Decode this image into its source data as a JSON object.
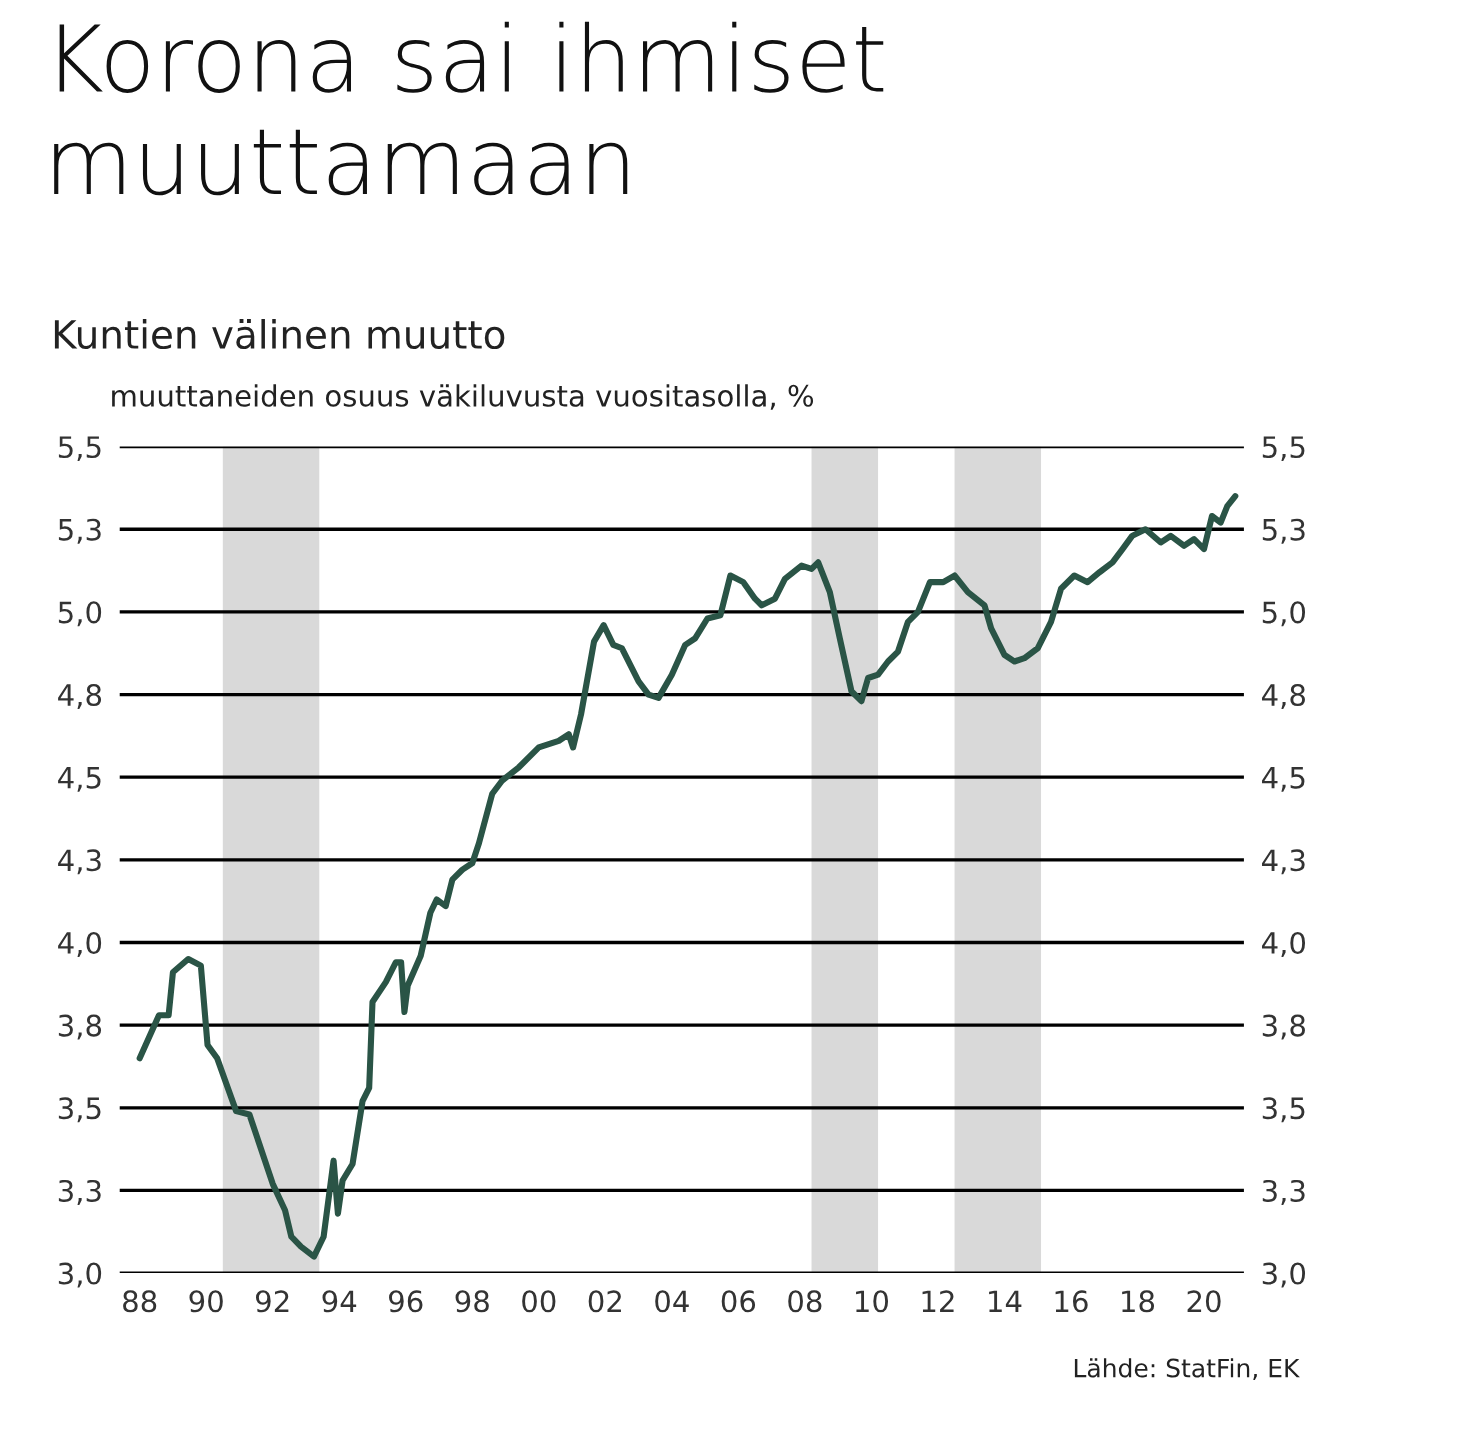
{
  "chart_data": {
    "type": "line",
    "title": "Korona sai ihmiset muuttamaan",
    "subtitle": "Kuntien välinen muutto",
    "ylabel": "muuttaneiden osuus väkiluvusta vuositasolla, %",
    "annotations": [
      "Lähde: StatFin, EK"
    ],
    "x": [
      1988.0,
      1988.58,
      1988.87,
      1989.0,
      1989.46,
      1989.84,
      1990.04,
      1990.33,
      1990.9,
      1991.3,
      1992.0,
      1992.37,
      1992.56,
      1992.85,
      1993.24,
      1993.53,
      1993.83,
      1993.96,
      1994.1,
      1994.4,
      1994.7,
      1994.9,
      1995.0,
      1995.4,
      1995.7,
      1995.86,
      1995.96,
      1996.06,
      1996.45,
      1996.74,
      1996.93,
      1997.2,
      1997.4,
      1997.7,
      1998.0,
      1998.2,
      1998.6,
      1998.9,
      1999.4,
      2000.0,
      2000.6,
      2000.9,
      2001.03,
      2001.27,
      2001.66,
      2001.95,
      2002.24,
      2002.5,
      2003.0,
      2003.3,
      2003.6,
      2004.0,
      2004.4,
      2004.7,
      2005.07,
      2005.46,
      2005.76,
      2006.15,
      2006.5,
      2006.7,
      2007.1,
      2007.4,
      2007.9,
      2008.2,
      2008.4,
      2008.75,
      2009.05,
      2009.4,
      2009.7,
      2009.9,
      2010.2,
      2010.5,
      2010.8,
      2011.1,
      2011.4,
      2011.76,
      2012.16,
      2012.5,
      2012.9,
      2013.4,
      2013.6,
      2014.0,
      2014.3,
      2014.6,
      2015.0,
      2015.4,
      2015.7,
      2016.1,
      2016.5,
      2016.86,
      2017.25,
      2017.55,
      2017.84,
      2018.24,
      2018.7,
      2019.0,
      2019.4,
      2019.7,
      2020.0,
      2020.24,
      2020.5,
      2020.7,
      2020.94
    ],
    "series": [
      {
        "color": "#2a5446",
        "values": [
          3.65,
          3.78,
          3.78,
          3.91,
          3.95,
          3.93,
          3.69,
          3.65,
          3.49,
          3.48,
          3.27,
          3.19,
          3.11,
          3.08,
          3.05,
          3.11,
          3.34,
          3.18,
          3.28,
          3.33,
          3.52,
          3.56,
          3.82,
          3.88,
          3.94,
          3.94,
          3.79,
          3.87,
          3.96,
          4.09,
          4.13,
          4.11,
          4.19,
          4.22,
          4.24,
          4.3,
          4.45,
          4.49,
          4.53,
          4.59,
          4.61,
          4.63,
          4.59,
          4.69,
          4.91,
          4.96,
          4.9,
          4.89,
          4.79,
          4.75,
          4.74,
          4.81,
          4.9,
          4.92,
          4.98,
          4.99,
          5.11,
          5.09,
          5.04,
          5.02,
          5.04,
          5.1,
          5.14,
          5.13,
          5.15,
          5.06,
          4.92,
          4.76,
          4.73,
          4.8,
          4.81,
          4.85,
          4.88,
          4.97,
          5.0,
          5.09,
          5.09,
          5.11,
          5.06,
          5.02,
          4.95,
          4.87,
          4.85,
          4.86,
          4.89,
          4.97,
          5.07,
          5.11,
          5.09,
          5.12,
          5.15,
          5.19,
          5.23,
          5.25,
          5.21,
          5.23,
          5.2,
          5.22,
          5.19,
          5.29,
          5.27,
          5.32,
          5.35
        ]
      }
    ],
    "bands": [
      {
        "axis": "x",
        "from": 1990.5,
        "to": 1993.4,
        "color": "#d9d9d9"
      },
      {
        "axis": "x",
        "from": 2008.2,
        "to": 2010.2,
        "color": "#d9d9d9"
      },
      {
        "axis": "x",
        "from": 2012.5,
        "to": 2015.1,
        "color": "#d9d9d9"
      }
    ],
    "xlim": [
      1987.4,
      2021.2
    ],
    "xticks": [
      {
        "value": 1988,
        "label": "88"
      },
      {
        "value": 1990,
        "label": "90"
      },
      {
        "value": 1992,
        "label": "92"
      },
      {
        "value": 1994,
        "label": "94"
      },
      {
        "value": 1996,
        "label": "96"
      },
      {
        "value": 1998,
        "label": "98"
      },
      {
        "value": 2000,
        "label": "00"
      },
      {
        "value": 2002,
        "label": "02"
      },
      {
        "value": 2004,
        "label": "04"
      },
      {
        "value": 2006,
        "label": "06"
      },
      {
        "value": 2008,
        "label": "08"
      },
      {
        "value": 2010,
        "label": "10"
      },
      {
        "value": 2012,
        "label": "12"
      },
      {
        "value": 2014,
        "label": "14"
      },
      {
        "value": 2016,
        "label": "16"
      },
      {
        "value": 2018,
        "label": "18"
      },
      {
        "value": 2020,
        "label": "20"
      }
    ],
    "ylim": [
      3.0,
      5.5
    ],
    "yticks": [
      {
        "value": 3.0,
        "label": "3,0"
      },
      {
        "value": 3.25,
        "label": "3,3"
      },
      {
        "value": 3.5,
        "label": "3,5"
      },
      {
        "value": 3.75,
        "label": "3,8"
      },
      {
        "value": 4.0,
        "label": "4,0"
      },
      {
        "value": 4.25,
        "label": "4,3"
      },
      {
        "value": 4.5,
        "label": "4,5"
      },
      {
        "value": 4.75,
        "label": "4,8"
      },
      {
        "value": 5.0,
        "label": "5,0"
      },
      {
        "value": 5.25,
        "label": "5,3"
      },
      {
        "value": 5.5,
        "label": "5,5"
      }
    ],
    "y2lim": [
      3.0,
      5.5
    ],
    "y2ticks": [
      {
        "value": 3.0,
        "label": "3,0"
      },
      {
        "value": 3.25,
        "label": "3,3"
      },
      {
        "value": 3.5,
        "label": "3,5"
      },
      {
        "value": 3.75,
        "label": "3,8"
      },
      {
        "value": 4.0,
        "label": "4,0"
      },
      {
        "value": 4.25,
        "label": "4,3"
      },
      {
        "value": 4.5,
        "label": "4,5"
      },
      {
        "value": 4.75,
        "label": "4,8"
      },
      {
        "value": 5.0,
        "label": "5,0"
      },
      {
        "value": 5.25,
        "label": "5,3"
      },
      {
        "value": 5.5,
        "label": "5,5"
      }
    ],
    "grid": "y",
    "line_style": "solid",
    "marker": "none"
  }
}
